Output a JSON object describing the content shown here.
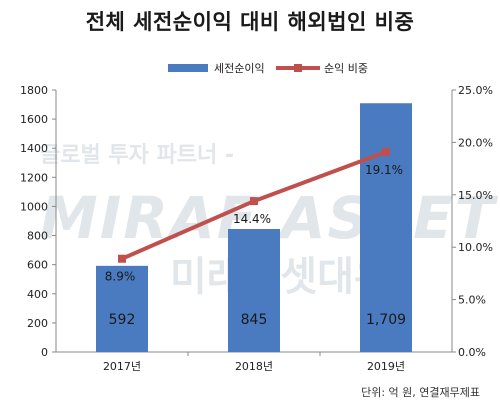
{
  "chart_data": {
    "type": "bar",
    "title": "전체 세전순이익 대비 해외법인 비중",
    "categories": [
      "2017년",
      "2018년",
      "2019년"
    ],
    "series": [
      {
        "name": "세전순이익",
        "type": "bar",
        "axis": "left",
        "values": [
          592,
          845,
          1709
        ],
        "labels": [
          "592",
          "845",
          "1,709"
        ]
      },
      {
        "name": "순익 비중",
        "type": "line",
        "axis": "right",
        "values": [
          8.9,
          14.4,
          19.1
        ],
        "labels": [
          "8.9%",
          "14.4%",
          "19.1%"
        ]
      }
    ],
    "y_left": {
      "min": 0,
      "max": 1800,
      "ticks": [
        "0",
        "200",
        "400",
        "600",
        "800",
        "1000",
        "1200",
        "1400",
        "1600",
        "1800"
      ]
    },
    "y_right": {
      "min": 0,
      "max": 25,
      "ticks": [
        "0.0%",
        "5.0%",
        "10.0%",
        "15.0%",
        "20.0%",
        "25.0%"
      ]
    },
    "legend_position": "top",
    "grid": false,
    "colors": {
      "bar": "#4a7ac0",
      "line": "#c0504d"
    },
    "source": "단위: 억 원, 연결재무제표",
    "watermark": [
      "글로벌 투자 파트너 -",
      "MIRAE ASSET",
      "미래에셋대우"
    ]
  }
}
